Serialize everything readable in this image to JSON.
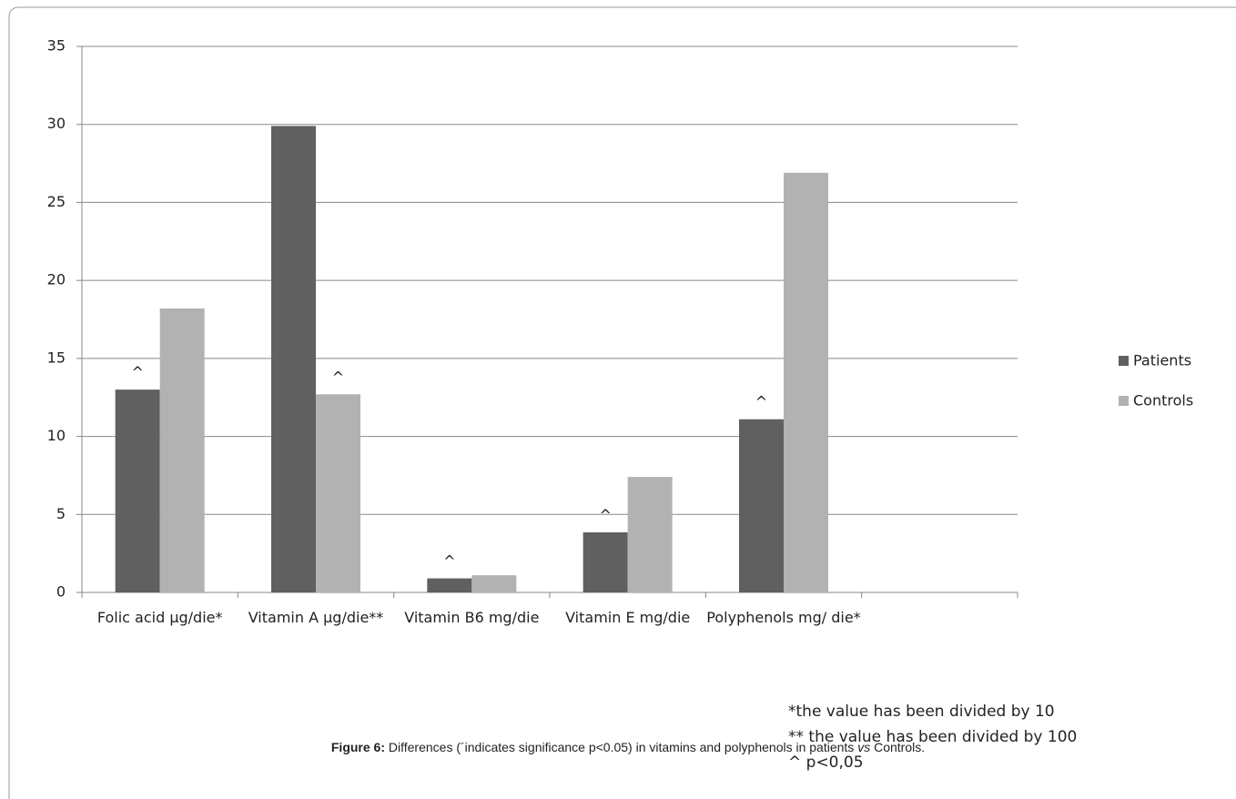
{
  "chart_data": {
    "type": "bar",
    "categories": [
      "Folic acid µg/die*",
      "Vitamin A µg/die**",
      "Vitamin B6 mg/die",
      "Vitamin E mg/die",
      "Polyphenols mg/ die*",
      null
    ],
    "series": [
      {
        "name": "Patients",
        "color": "#606060",
        "values": [
          13,
          29.9,
          0.9,
          3.85,
          11.1,
          null
        ],
        "annotations": [
          "^",
          null,
          "^",
          "^",
          "^",
          null
        ]
      },
      {
        "name": "Controls",
        "color": "#b2b2b2",
        "values": [
          18.2,
          12.7,
          1.1,
          7.4,
          26.9,
          null
        ],
        "annotations": [
          null,
          "^",
          null,
          null,
          null,
          null
        ]
      }
    ],
    "ylim": [
      0,
      35
    ],
    "yticks": [
      0,
      5,
      10,
      15,
      20,
      25,
      30,
      35
    ],
    "grid": true,
    "legend": "right",
    "notes": [
      "*the value has been divided by 10",
      "** the value has been divided by 100",
      "^ p<0,05"
    ],
    "caption": {
      "label": "Figure 6:",
      "parts": [
        " Differences (´indicates significance p<0.05) in vitamins and polyphenols in patients ",
        "vs",
        " Controls."
      ]
    }
  }
}
